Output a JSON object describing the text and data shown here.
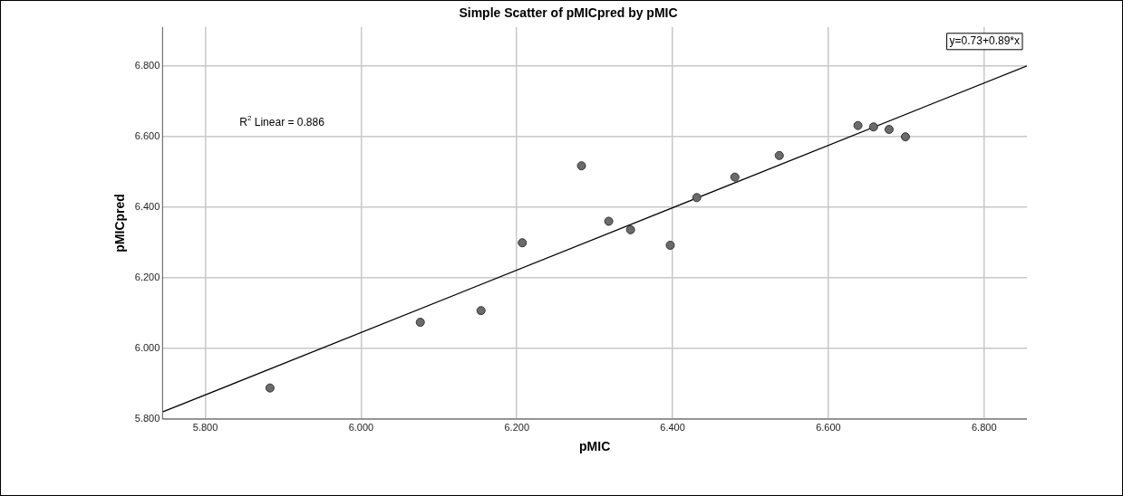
{
  "chart_data": {
    "type": "scatter",
    "title": "Simple Scatter of pMICpred by pMIC",
    "xlabel": "pMIC",
    "ylabel": "pMICpred",
    "annotations": [
      "R$^{2}$ Linear = 0.886",
      "y=0.73+0.89*x"
    ],
    "series": [
      {
        "color": "#6b6b6b",
        "x": [
          5.883,
          6.076,
          6.154,
          6.207,
          6.283,
          6.318,
          6.346,
          6.397,
          6.431,
          6.48,
          6.537,
          6.638,
          6.658,
          6.678,
          6.699
        ],
        "values": [
          5.888,
          6.074,
          6.107,
          6.299,
          6.517,
          6.36,
          6.336,
          6.292,
          6.427,
          6.485,
          6.546,
          6.631,
          6.627,
          6.62,
          6.599
        ]
      },
      {
        "type": "line",
        "marker": "none",
        "color": "#000000",
        "x": [
          5.745,
          6.855
        ],
        "values": [
          5.82,
          6.8
        ]
      }
    ],
    "xlim": [
      5.745,
      6.855
    ],
    "ylim": [
      5.8,
      6.91
    ],
    "xticks": [
      {
        "value": 5.8,
        "label": "5.800"
      },
      {
        "value": 6.0,
        "label": "6.000"
      },
      {
        "value": 6.2,
        "label": "6.200"
      },
      {
        "value": 6.4,
        "label": "6.400"
      },
      {
        "value": 6.6,
        "label": "6.600"
      },
      {
        "value": 6.8,
        "label": "6.800"
      }
    ],
    "yticks": [
      {
        "value": 5.8,
        "label": "5.800"
      },
      {
        "value": 6.0,
        "label": "6.000"
      },
      {
        "value": 6.2,
        "label": "6.200"
      },
      {
        "value": 6.4,
        "label": "6.400"
      },
      {
        "value": 6.6,
        "label": "6.600"
      },
      {
        "value": 6.8,
        "label": "6.800"
      }
    ],
    "grid": true,
    "legend": false,
    "marker": "circle",
    "line_style": "solid"
  }
}
